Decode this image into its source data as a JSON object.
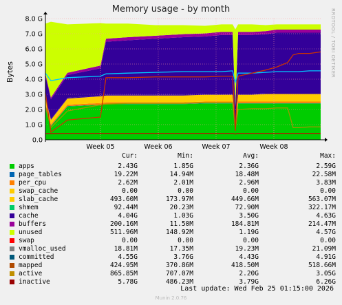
{
  "chart_data": {
    "type": "area",
    "title": "Memory usage - by month",
    "ylabel": "Bytes",
    "ylim": [
      0,
      8.0
    ],
    "y_unit": "G",
    "yticks": [
      "0.0",
      "1.0 G",
      "2.0 G",
      "3.0 G",
      "4.0 G",
      "5.0 G",
      "6.0 G",
      "7.0 G",
      "8.0 G"
    ],
    "xticks": [
      "Week 05",
      "Week 06",
      "Week 07",
      "Week 08"
    ],
    "grid": true,
    "stacked_series": [
      {
        "name": "apps",
        "color": "#00cc00",
        "values": [
          2.3,
          0.9,
          2.2,
          2.3,
          2.35,
          2.35,
          2.35,
          2.35,
          2.4,
          2.4,
          2.4,
          0.6,
          2.4,
          2.4,
          2.4,
          2.4,
          2.4,
          2.4,
          2.4,
          2.4,
          2.4
        ]
      },
      {
        "name": "page_tables",
        "color": "#0066b3",
        "values": [
          0.02,
          0.02,
          0.02,
          0.02,
          0.02,
          0.02,
          0.02,
          0.02,
          0.02,
          0.02,
          0.02,
          0.02,
          0.02,
          0.02,
          0.02,
          0.02,
          0.02,
          0.02,
          0.02,
          0.02,
          0.02
        ]
      },
      {
        "name": "per_cpu",
        "color": "#ff8000",
        "values": [
          0.1,
          0.1,
          0.1,
          0.1,
          0.1,
          0.1,
          0.1,
          0.1,
          0.1,
          0.1,
          0.1,
          0.1,
          0.1,
          0.1,
          0.1,
          0.1,
          0.1,
          0.1,
          0.1,
          0.1,
          0.1
        ]
      },
      {
        "name": "slab_cache",
        "color": "#ffcc00",
        "values": [
          0.35,
          0.3,
          0.4,
          0.45,
          0.45,
          0.45,
          0.45,
          0.45,
          0.45,
          0.45,
          0.45,
          0.3,
          0.45,
          0.45,
          0.5,
          0.5,
          0.5,
          0.5,
          0.5,
          0.5,
          0.5
        ]
      },
      {
        "name": "shmem",
        "color": "#330099",
        "values": [
          0.05,
          0.05,
          0.05,
          0.05,
          0.05,
          0.05,
          0.05,
          0.05,
          0.05,
          0.05,
          0.05,
          0.05,
          0.05,
          0.05,
          0.05,
          0.05,
          0.05,
          0.05,
          0.05,
          0.05,
          0.05
        ]
      },
      {
        "name": "cache",
        "color": "#330099",
        "values": [
          1.4,
          1.3,
          1.5,
          1.8,
          3.5,
          3.6,
          3.7,
          3.8,
          3.8,
          3.9,
          3.9,
          1.1,
          3.9,
          3.9,
          3.9,
          4.0,
          4.0,
          4.0,
          4.0,
          4.0,
          4.0
        ]
      },
      {
        "name": "buffers",
        "color": "#990099",
        "values": [
          0.15,
          0.12,
          0.15,
          0.18,
          0.2,
          0.2,
          0.2,
          0.2,
          0.2,
          0.2,
          0.2,
          0.12,
          0.2,
          0.2,
          0.2,
          0.2,
          0.2,
          0.2,
          0.2,
          0.2,
          0.2
        ]
      },
      {
        "name": "unused",
        "color": "#ccff00",
        "values": [
          3.3,
          5.0,
          3.2,
          2.8,
          1.0,
          0.9,
          0.7,
          0.6,
          0.5,
          0.5,
          0.5,
          5.0,
          0.5,
          0.5,
          0.4,
          0.35,
          0.35,
          0.35,
          0.35,
          0.35,
          0.35
        ]
      }
    ],
    "line_series": [
      {
        "name": "committed",
        "color": "#00ccff",
        "values": [
          4.4,
          3.9,
          4.1,
          4.2,
          4.35,
          4.4,
          4.45,
          4.5,
          4.5,
          4.5,
          4.55,
          3.8,
          4.4,
          4.4,
          4.45,
          4.5,
          4.5,
          4.5,
          4.5,
          4.55,
          4.55
        ]
      },
      {
        "name": "mapped",
        "color": "#cc0000",
        "values": [
          0.4,
          0.4,
          0.42,
          0.42,
          0.42,
          0.42,
          0.42,
          0.42,
          0.42,
          0.42,
          0.42,
          0.38,
          0.42,
          0.42,
          0.42,
          0.42,
          0.42,
          0.42,
          0.42,
          0.42,
          0.42
        ]
      },
      {
        "name": "active",
        "color": "#999900",
        "values": [
          2.2,
          0.8,
          1.9,
          2.3,
          2.35,
          2.4,
          2.4,
          2.4,
          2.45,
          2.45,
          2.45,
          0.7,
          2.0,
          2.05,
          2.05,
          2.1,
          2.1,
          0.8,
          0.8,
          0.85,
          0.85
        ]
      },
      {
        "name": "inactive",
        "color": "#cc3300",
        "values": [
          3.1,
          0.5,
          1.3,
          1.5,
          4.1,
          4.1,
          4.15,
          4.15,
          4.15,
          4.2,
          4.2,
          0.6,
          4.2,
          4.4,
          4.6,
          4.8,
          5.1,
          5.6,
          5.7,
          5.7,
          5.8
        ]
      }
    ],
    "x_fraction": [
      0,
      0.02,
      0.08,
      0.2,
      0.22,
      0.3,
      0.4,
      0.5,
      0.58,
      0.64,
      0.68,
      0.69,
      0.7,
      0.75,
      0.8,
      0.84,
      0.88,
      0.9,
      0.92,
      0.96,
      1.0
    ]
  },
  "legend": {
    "headers": {
      "cur": "Cur:",
      "min": "Min:",
      "avg": "Avg:",
      "max": "Max:"
    },
    "rows": [
      {
        "name": "apps",
        "color": "#00cc00",
        "cur": "2.43G",
        "min": "1.85G",
        "avg": "2.36G",
        "max": "2.59G"
      },
      {
        "name": "page_tables",
        "color": "#0066b3",
        "cur": "19.22M",
        "min": "14.94M",
        "avg": "18.48M",
        "max": "22.58M"
      },
      {
        "name": "per_cpu",
        "color": "#ff8000",
        "cur": "2.62M",
        "min": "2.01M",
        "avg": "2.96M",
        "max": "3.83M"
      },
      {
        "name": "swap_cache",
        "color": "#ffcc00",
        "cur": "0.00",
        "min": "0.00",
        "avg": "0.00",
        "max": "0.00"
      },
      {
        "name": "slab_cache",
        "color": "#ffcc00",
        "cur": "493.60M",
        "min": "173.97M",
        "avg": "449.66M",
        "max": "563.07M"
      },
      {
        "name": "shmem",
        "color": "#00cc66",
        "cur": "92.44M",
        "min": "20.23M",
        "avg": "72.90M",
        "max": "322.17M"
      },
      {
        "name": "cache",
        "color": "#330099",
        "cur": "4.04G",
        "min": "1.03G",
        "avg": "3.50G",
        "max": "4.63G"
      },
      {
        "name": "buffers",
        "color": "#990099",
        "cur": "200.16M",
        "min": "11.50M",
        "avg": "184.81M",
        "max": "214.47M"
      },
      {
        "name": "unused",
        "color": "#ccff00",
        "cur": "511.96M",
        "min": "148.92M",
        "avg": "1.19G",
        "max": "4.57G"
      },
      {
        "name": "swap",
        "color": "#ff0000",
        "cur": "0.00",
        "min": "0.00",
        "avg": "0.00",
        "max": "0.00"
      },
      {
        "name": "vmalloc_used",
        "color": "#808080",
        "cur": "18.81M",
        "min": "17.35M",
        "avg": "19.23M",
        "max": "21.09M"
      },
      {
        "name": "committed",
        "color": "#00587a",
        "cur": "4.55G",
        "min": "3.76G",
        "avg": "4.43G",
        "max": "4.91G"
      },
      {
        "name": "mapped",
        "color": "#b04a00",
        "cur": "424.95M",
        "min": "370.86M",
        "avg": "418.50M",
        "max": "518.66M"
      },
      {
        "name": "active",
        "color": "#c08f00",
        "cur": "865.85M",
        "min": "707.07M",
        "avg": "2.20G",
        "max": "3.05G"
      },
      {
        "name": "inactive",
        "color": "#990000",
        "cur": "5.78G",
        "min": "486.23M",
        "avg": "3.79G",
        "max": "6.26G"
      }
    ]
  },
  "last_update": "Last update: Wed Feb 25 01:15:00 2026",
  "watermark": "RRDTOOL / TOBI OETIKER",
  "footer": "Munin 2.0.76"
}
